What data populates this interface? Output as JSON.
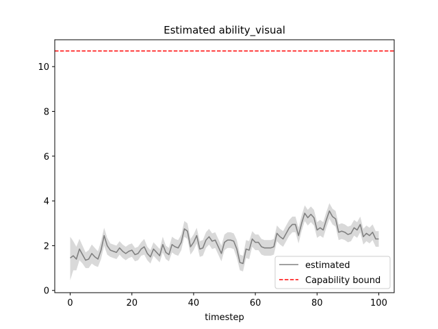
{
  "chart_data": {
    "type": "line",
    "title": "Estimated ability_visual",
    "xlabel": "timestep",
    "ylabel": "",
    "xlim": [
      -5,
      105
    ],
    "ylim": [
      -0.1,
      11.2
    ],
    "xticks": [
      0,
      20,
      40,
      60,
      80,
      100
    ],
    "yticks": [
      0,
      2,
      4,
      6,
      8,
      10
    ],
    "grid": false,
    "legend_position": "lower-right",
    "series": [
      {
        "name": "estimated",
        "color": "#808080",
        "band_color": "#d9d9d9",
        "x": [
          0,
          1,
          2,
          3,
          4,
          5,
          6,
          7,
          8,
          9,
          10,
          11,
          12,
          13,
          14,
          15,
          16,
          17,
          18,
          19,
          20,
          21,
          22,
          23,
          24,
          25,
          26,
          27,
          28,
          29,
          30,
          31,
          32,
          33,
          34,
          35,
          36,
          37,
          38,
          39,
          40,
          41,
          42,
          43,
          44,
          45,
          46,
          47,
          48,
          49,
          50,
          51,
          52,
          53,
          54,
          55,
          56,
          57,
          58,
          59,
          60,
          61,
          62,
          63,
          64,
          65,
          66,
          67,
          68,
          69,
          70,
          71,
          72,
          73,
          74,
          75,
          76,
          77,
          78,
          79,
          80,
          81,
          82,
          83,
          84,
          85,
          86,
          87,
          88,
          89,
          90,
          91,
          92,
          93,
          94,
          95,
          96,
          97,
          98,
          99,
          100
        ],
        "y": [
          1.45,
          1.55,
          1.4,
          1.85,
          1.6,
          1.35,
          1.4,
          1.65,
          1.5,
          1.4,
          1.8,
          2.45,
          2.0,
          1.8,
          1.75,
          1.7,
          1.9,
          1.75,
          1.65,
          1.75,
          1.8,
          1.6,
          1.65,
          1.85,
          1.95,
          1.65,
          1.5,
          1.85,
          1.7,
          1.55,
          2.05,
          1.7,
          1.6,
          2.05,
          1.95,
          1.9,
          2.15,
          2.75,
          2.65,
          1.95,
          2.15,
          2.45,
          1.85,
          1.9,
          2.25,
          2.4,
          2.2,
          2.25,
          1.95,
          1.65,
          2.15,
          2.25,
          2.25,
          2.2,
          1.85,
          1.25,
          1.2,
          1.85,
          1.8,
          2.3,
          2.15,
          2.15,
          1.95,
          1.9,
          1.9,
          1.9,
          1.95,
          2.55,
          2.4,
          2.3,
          2.55,
          2.8,
          2.95,
          2.95,
          2.45,
          3.0,
          3.45,
          3.25,
          3.4,
          3.25,
          2.7,
          2.8,
          2.7,
          3.15,
          3.55,
          3.3,
          3.2,
          2.6,
          2.65,
          2.6,
          2.5,
          2.55,
          2.8,
          2.7,
          2.95,
          2.4,
          2.55,
          2.45,
          2.6,
          2.3,
          2.3
        ],
        "lower": [
          0.45,
          0.9,
          0.9,
          1.35,
          1.2,
          1.0,
          1.0,
          1.2,
          1.1,
          1.05,
          1.4,
          2.0,
          1.6,
          1.5,
          1.45,
          1.4,
          1.6,
          1.45,
          1.35,
          1.45,
          1.5,
          1.3,
          1.35,
          1.55,
          1.6,
          1.35,
          1.2,
          1.55,
          1.4,
          1.25,
          1.7,
          1.4,
          1.3,
          1.7,
          1.6,
          1.55,
          1.8,
          2.4,
          2.3,
          1.6,
          1.8,
          2.1,
          1.5,
          1.55,
          1.9,
          2.05,
          1.85,
          1.9,
          1.6,
          1.3,
          1.8,
          1.9,
          1.9,
          1.85,
          1.45,
          0.9,
          0.85,
          1.45,
          1.4,
          1.95,
          1.8,
          1.8,
          1.6,
          1.55,
          1.55,
          1.55,
          1.6,
          2.2,
          2.05,
          1.95,
          2.2,
          2.45,
          2.6,
          2.6,
          2.1,
          2.65,
          3.1,
          2.9,
          3.05,
          2.9,
          2.35,
          2.45,
          2.35,
          2.8,
          3.2,
          2.95,
          2.85,
          2.25,
          2.3,
          2.25,
          2.15,
          2.2,
          2.45,
          2.35,
          2.6,
          2.05,
          2.2,
          2.1,
          2.25,
          1.95,
          1.95
        ],
        "upper": [
          2.4,
          2.2,
          1.95,
          2.3,
          2.0,
          1.7,
          1.8,
          2.05,
          1.9,
          1.75,
          2.2,
          2.8,
          2.35,
          2.1,
          2.05,
          2.0,
          2.2,
          2.05,
          1.95,
          2.05,
          2.1,
          1.9,
          1.95,
          2.15,
          2.3,
          1.95,
          1.8,
          2.15,
          2.0,
          1.85,
          2.4,
          2.0,
          1.9,
          2.4,
          2.3,
          2.25,
          2.5,
          3.1,
          3.0,
          2.3,
          2.5,
          2.8,
          2.2,
          2.25,
          2.6,
          2.75,
          2.55,
          2.6,
          2.3,
          2.0,
          2.5,
          2.6,
          2.6,
          2.55,
          2.25,
          1.6,
          1.55,
          2.25,
          2.2,
          2.65,
          2.5,
          2.5,
          2.3,
          2.25,
          2.25,
          2.25,
          2.3,
          2.9,
          2.75,
          2.65,
          2.9,
          3.15,
          3.3,
          3.3,
          2.8,
          3.35,
          3.8,
          3.6,
          3.75,
          3.6,
          3.05,
          3.15,
          3.05,
          3.5,
          3.9,
          3.65,
          3.55,
          2.95,
          3.0,
          2.95,
          2.85,
          2.9,
          3.15,
          3.05,
          3.3,
          2.75,
          2.9,
          2.8,
          2.95,
          2.65,
          2.65
        ]
      },
      {
        "name": "Capability bound",
        "color": "#ff0000",
        "style": "dashed",
        "y_constant": 10.7
      }
    ]
  }
}
